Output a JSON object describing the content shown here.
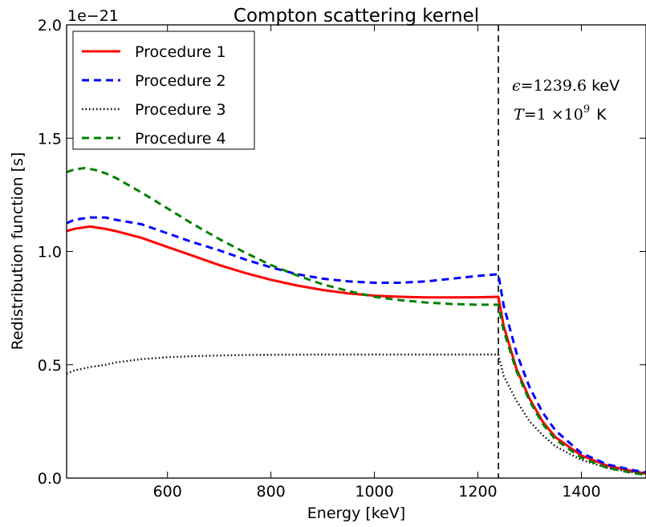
{
  "chart_data": {
    "type": "line",
    "title": "Compton scattering kernel",
    "xlabel": "Energy [keV]",
    "ylabel": "Redistribution function [s]",
    "y_offset_label": "1e−21",
    "xlim": [
      405,
      1525
    ],
    "ylim": [
      0.0,
      2.0
    ],
    "x_ticks": [
      600,
      800,
      1000,
      1200,
      1400
    ],
    "x_tick_labels": [
      "600",
      "800",
      "1000",
      "1200",
      "1400"
    ],
    "y_ticks": [
      0.0,
      0.5,
      1.0,
      1.5,
      2.0
    ],
    "y_tick_labels": [
      "0.0",
      "0.5",
      "1.0",
      "1.5",
      "2.0"
    ],
    "grid": false,
    "legend_position": "top-left",
    "vertical_line_x": 1239.6,
    "annotations": {
      "line1_symbol": "ϵ",
      "line1_value": "=1239.6",
      "line1_unit": "keV",
      "line2_symbol": "T",
      "line2_value": "=1 ×10",
      "line2_exp": "9",
      "line2_unit": "K"
    },
    "series": [
      {
        "name": "Procedure 1",
        "color": "#ff0000",
        "style": "solid",
        "x": [
          405,
          420,
          450,
          480,
          500,
          550,
          600,
          650,
          700,
          750,
          800,
          850,
          900,
          950,
          1000,
          1050,
          1100,
          1150,
          1200,
          1239.6,
          1250,
          1275,
          1300,
          1325,
          1350,
          1400,
          1450,
          1500,
          1525
        ],
        "y": [
          1.09,
          1.1,
          1.11,
          1.1,
          1.09,
          1.06,
          1.02,
          0.98,
          0.94,
          0.905,
          0.875,
          0.85,
          0.83,
          0.815,
          0.805,
          0.8,
          0.797,
          0.797,
          0.798,
          0.8,
          0.67,
          0.48,
          0.35,
          0.25,
          0.18,
          0.1,
          0.055,
          0.03,
          0.02
        ]
      },
      {
        "name": "Procedure 2",
        "color": "#0000ff",
        "style": "dashed",
        "x": [
          405,
          420,
          450,
          480,
          500,
          550,
          600,
          650,
          700,
          750,
          800,
          850,
          900,
          950,
          1000,
          1050,
          1100,
          1150,
          1200,
          1239.6,
          1250,
          1275,
          1300,
          1325,
          1350,
          1400,
          1450,
          1500,
          1525
        ],
        "y": [
          1.125,
          1.14,
          1.15,
          1.15,
          1.14,
          1.12,
          1.08,
          1.04,
          1.005,
          0.965,
          0.93,
          0.9,
          0.88,
          0.868,
          0.862,
          0.862,
          0.868,
          0.88,
          0.892,
          0.9,
          0.76,
          0.55,
          0.4,
          0.29,
          0.21,
          0.11,
          0.06,
          0.035,
          0.025
        ]
      },
      {
        "name": "Procedure 3",
        "color": "#000000",
        "style": "dotted",
        "x": [
          405,
          420,
          450,
          480,
          500,
          550,
          600,
          650,
          700,
          750,
          800,
          900,
          1000,
          1100,
          1200,
          1239.6,
          1250,
          1275,
          1300,
          1325,
          1350,
          1400,
          1450,
          1500,
          1525
        ],
        "y": [
          0.46,
          0.475,
          0.49,
          0.5,
          0.51,
          0.525,
          0.533,
          0.538,
          0.541,
          0.543,
          0.544,
          0.545,
          0.545,
          0.545,
          0.545,
          0.545,
          0.45,
          0.34,
          0.25,
          0.19,
          0.14,
          0.08,
          0.045,
          0.025,
          0.018
        ]
      },
      {
        "name": "Procedure 4",
        "color": "#008000",
        "style": "dashed",
        "x": [
          405,
          420,
          440,
          460,
          480,
          500,
          550,
          600,
          650,
          700,
          750,
          800,
          850,
          900,
          950,
          1000,
          1050,
          1100,
          1150,
          1200,
          1239.6,
          1250,
          1275,
          1300,
          1325,
          1350,
          1400,
          1450,
          1500,
          1525
        ],
        "y": [
          1.35,
          1.362,
          1.368,
          1.36,
          1.345,
          1.325,
          1.26,
          1.19,
          1.12,
          1.055,
          0.995,
          0.94,
          0.895,
          0.855,
          0.825,
          0.8,
          0.785,
          0.775,
          0.768,
          0.765,
          0.765,
          0.65,
          0.47,
          0.34,
          0.24,
          0.17,
          0.09,
          0.045,
          0.022,
          0.015
        ]
      }
    ]
  }
}
